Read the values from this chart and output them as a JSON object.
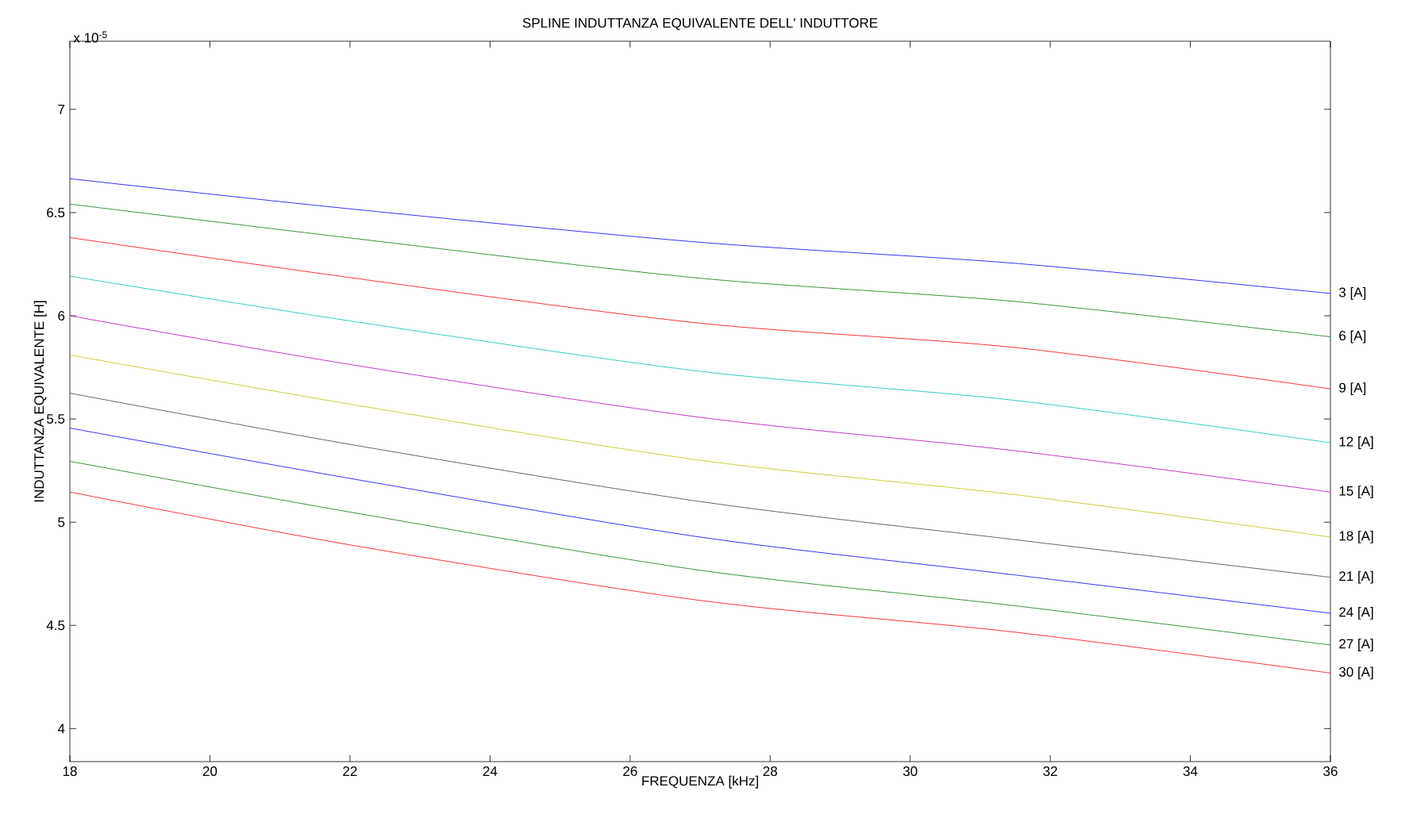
{
  "chart_data": {
    "type": "line",
    "title": "SPLINE INDUTTANZA EQUIVALENTE DELL' INDUTTORE",
    "xlabel": "FREQUENZA [kHz]",
    "ylabel": "INDUTTANZA EQUIVALENTE [H]",
    "annotations": [
      "x 10$^{-5}$"
    ],
    "x": [
      18,
      22,
      27,
      31.5,
      36
    ],
    "xlim": [
      18,
      36
    ],
    "xticks": [
      18,
      20,
      22,
      24,
      26,
      28,
      30,
      32,
      34,
      36
    ],
    "ylim": [
      3.84,
      7.33
    ],
    "yticks": [
      4,
      4.5,
      5,
      5.5,
      6,
      6.5,
      7
    ],
    "grid": false,
    "legend": false,
    "marker": "none",
    "line_style": "solid",
    "series": [
      {
        "name": "3  [A]",
        "color": "#0000ff",
        "values": [
          6.664,
          6.518,
          6.356,
          6.254,
          6.108
        ]
      },
      {
        "name": "6  [A]",
        "color": "#008000",
        "values": [
          6.541,
          6.377,
          6.182,
          6.069,
          5.898
        ]
      },
      {
        "name": "9  [A]",
        "color": "#ff0000",
        "values": [
          6.379,
          6.185,
          5.964,
          5.846,
          5.646
        ]
      },
      {
        "name": "12  [A]",
        "color": "#00bfbf",
        "values": [
          6.192,
          5.975,
          5.731,
          5.59,
          5.385
        ]
      },
      {
        "name": "15  [A]",
        "color": "#bf00bf",
        "values": [
          6.0,
          5.764,
          5.508,
          5.346,
          5.146
        ]
      },
      {
        "name": "18  [A]",
        "color": "#bfbf00",
        "values": [
          5.81,
          5.572,
          5.3,
          5.133,
          4.928
        ]
      },
      {
        "name": "21  [A]",
        "color": "#404040",
        "values": [
          5.625,
          5.377,
          5.1,
          4.915,
          4.733
        ]
      },
      {
        "name": "24  [A]",
        "color": "#0000ff",
        "values": [
          5.456,
          5.212,
          4.928,
          4.744,
          4.559
        ]
      },
      {
        "name": "27  [A]",
        "color": "#008000",
        "values": [
          5.295,
          5.049,
          4.767,
          4.595,
          4.405
        ]
      },
      {
        "name": "30  [A]",
        "color": "#ff0000",
        "values": [
          5.146,
          4.89,
          4.621,
          4.467,
          4.269
        ]
      }
    ]
  }
}
